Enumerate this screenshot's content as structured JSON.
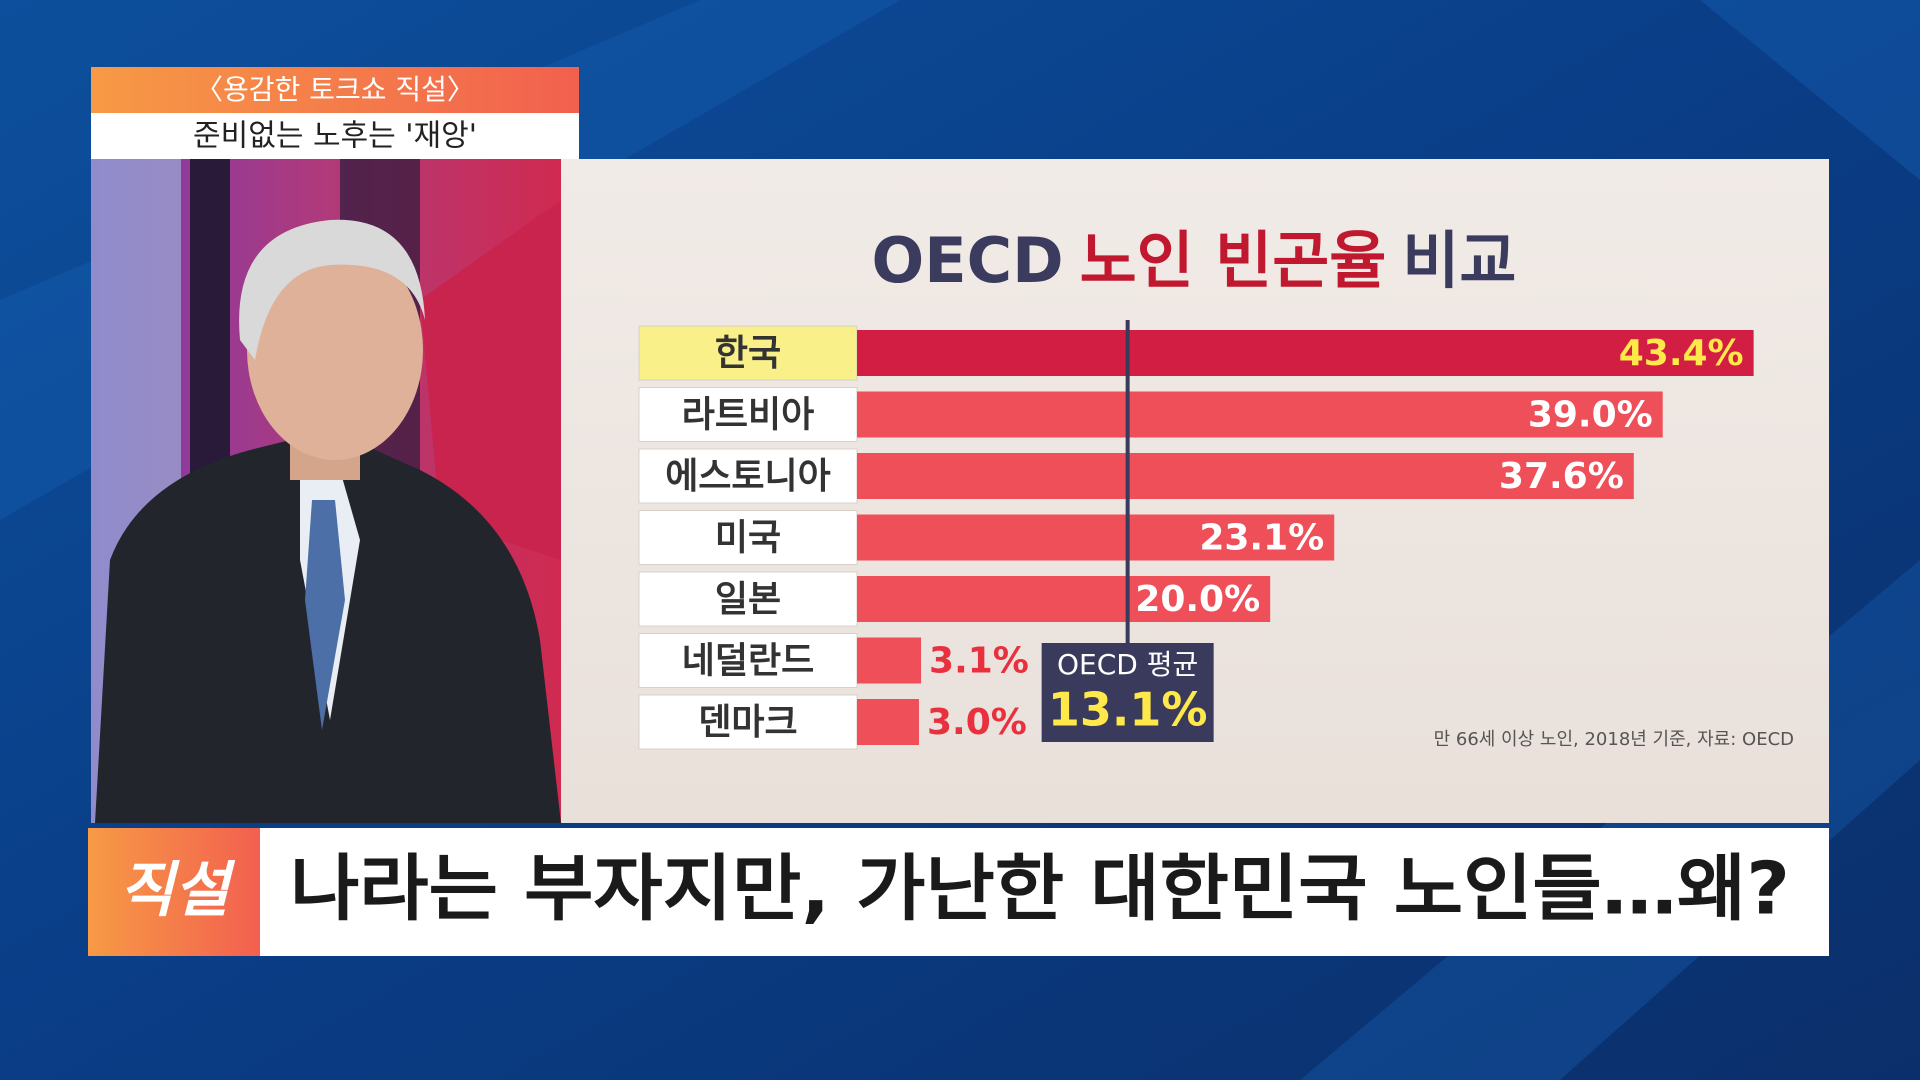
{
  "program": {
    "name": "〈용감한 토크쇼 직설〉",
    "topic": "준비없는 노후는 '재앙'",
    "logo": "직설",
    "headline": "나라는 부자지만, 가난한 대한민국 노인들…왜?"
  },
  "chart_data": {
    "type": "bar",
    "orientation": "horizontal",
    "title": [
      "OECD",
      "노인 빈곤율",
      "비교"
    ],
    "title_colors": [
      "#3b3b5e",
      "#c0182f",
      "#3b3b5e"
    ],
    "categories": [
      "한국",
      "라트비아",
      "에스토니아",
      "미국",
      "일본",
      "네덜란드",
      "덴마크"
    ],
    "values": [
      43.4,
      39.0,
      37.6,
      23.1,
      20.0,
      3.1,
      3.0
    ],
    "value_labels": [
      "43.4%",
      "39.0%",
      "37.6%",
      "23.1%",
      "20.0%",
      "3.1%",
      "3.0%"
    ],
    "colors": [
      "#d21e42",
      "#ef4f58",
      "#ef4f58",
      "#ef4f58",
      "#ef4f58",
      "#ef4f58",
      "#ef4f58"
    ],
    "label_box_colors": [
      "#f9f08a",
      "#ffffff",
      "#ffffff",
      "#ffffff",
      "#ffffff",
      "#ffffff",
      "#ffffff"
    ],
    "value_label_colors": [
      "#ffe94a",
      "#ffffff",
      "#ffffff",
      "#ffffff",
      "#ffffff",
      "#e8303f",
      "#e8303f"
    ],
    "xlim": [
      0,
      47
    ],
    "reference": {
      "label": "OECD 평균",
      "value": 13.1,
      "value_label": "13.1%"
    },
    "note": "만 66세 이상 노인, 2018년 기준, 자료: OECD"
  }
}
